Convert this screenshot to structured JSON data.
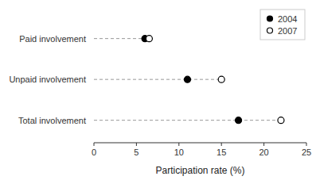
{
  "chart_data": {
    "type": "dot",
    "categories": [
      "Paid involvement",
      "Unpaid involvement",
      "Total involvement"
    ],
    "series": [
      {
        "name": "2004",
        "color": "#000000",
        "marker": "circle",
        "values": [
          6.0,
          11.0,
          17.0
        ]
      },
      {
        "name": "2007",
        "color": "#000000",
        "marker": "open-circle",
        "values": [
          6.5,
          15.0,
          22.0
        ]
      }
    ],
    "xlabel": "Participation rate (%)",
    "xlim": [
      0,
      25
    ],
    "xticks": [
      0,
      5,
      10,
      15,
      20,
      25
    ],
    "legend": "upper right"
  }
}
